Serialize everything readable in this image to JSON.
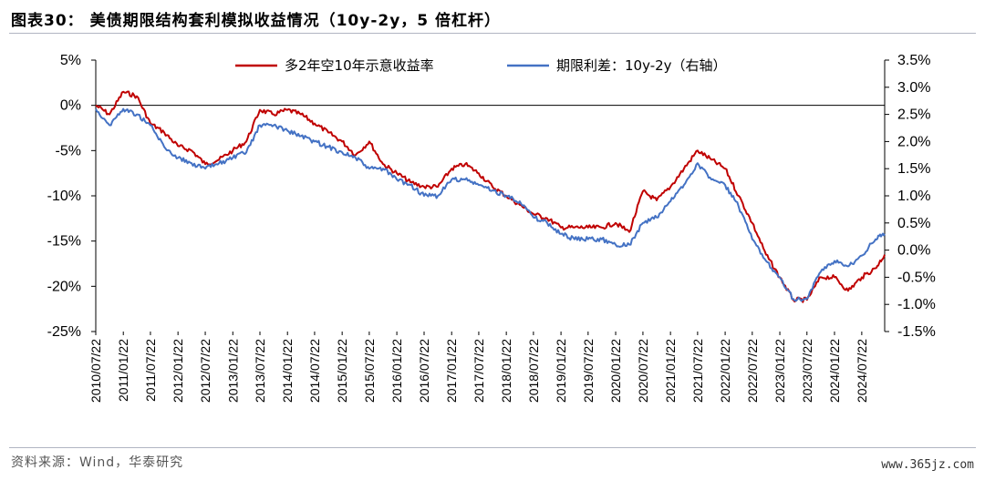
{
  "header": {
    "title": "图表30：  美债期限结构套利模拟收益情况（10y-2y，5 倍杠杆）"
  },
  "footer": {
    "source": "资料来源：Wind，华泰研究",
    "watermark": "www.365jz.com"
  },
  "chart_data": {
    "type": "line",
    "legend_placement": "top",
    "grid": false,
    "x_dates": [
      "2010-07-22",
      "2010-10-22",
      "2011-01-22",
      "2011-04-22",
      "2011-07-22",
      "2011-10-22",
      "2012-01-22",
      "2012-04-22",
      "2012-07-22",
      "2012-10-22",
      "2013-01-22",
      "2013-04-22",
      "2013-07-22",
      "2013-10-22",
      "2014-01-22",
      "2014-04-22",
      "2014-07-22",
      "2014-10-22",
      "2015-01-22",
      "2015-04-22",
      "2015-07-22",
      "2015-10-22",
      "2016-01-22",
      "2016-04-22",
      "2016-07-22",
      "2016-10-22",
      "2017-01-22",
      "2017-04-22",
      "2017-07-22",
      "2017-10-22",
      "2018-01-22",
      "2018-04-22",
      "2018-07-22",
      "2018-10-22",
      "2019-01-22",
      "2019-04-22",
      "2019-07-22",
      "2019-10-22",
      "2020-01-22",
      "2020-04-22",
      "2020-07-22",
      "2020-10-22",
      "2021-01-22",
      "2021-04-22",
      "2021-07-22",
      "2021-10-22",
      "2022-01-22",
      "2022-04-22",
      "2022-07-22",
      "2022-10-22",
      "2023-01-22",
      "2023-04-22",
      "2023-07-22",
      "2023-10-22",
      "2024-01-22",
      "2024-04-22",
      "2024-07-22",
      "2024-10-22",
      "2024-12-22"
    ],
    "x_tick_labels": [
      "2010/07/22",
      "2011/01/22",
      "2011/07/22",
      "2012/01/22",
      "2012/07/22",
      "2013/01/22",
      "2013/07/22",
      "2014/01/22",
      "2014/07/22",
      "2015/01/22",
      "2015/07/22",
      "2016/01/22",
      "2016/07/22",
      "2017/01/22",
      "2017/07/22",
      "2018/01/22",
      "2018/07/22",
      "2019/01/22",
      "2019/07/22",
      "2020/01/22",
      "2020/07/22",
      "2021/01/22",
      "2021/07/22",
      "2022/01/22",
      "2022/07/22",
      "2023/01/22",
      "2023/07/22",
      "2024/01/22",
      "2024/07/22"
    ],
    "y_left": {
      "ticks": [
        5,
        0,
        -5,
        -10,
        -15,
        -20,
        -25
      ],
      "tick_labels": [
        "5%",
        "0%",
        "-5%",
        "-10%",
        "-15%",
        "-20%",
        "-25%"
      ],
      "range": [
        -25,
        5
      ]
    },
    "y_right": {
      "ticks": [
        3.5,
        3.0,
        2.5,
        2.0,
        1.5,
        1.0,
        0.5,
        0.0,
        -0.5,
        -1.0,
        -1.5
      ],
      "tick_labels": [
        "3.5%",
        "3.0%",
        "2.5%",
        "2.0%",
        "1.5%",
        "1.0%",
        "0.5%",
        "0.0%",
        "-0.5%",
        "-1.0%",
        "-1.5%"
      ],
      "range": [
        -1.5,
        3.5
      ]
    },
    "series": [
      {
        "name": "多2年空10年示意收益率",
        "axis": "left",
        "color": "#c00000",
        "values": [
          0,
          -1,
          1.5,
          1,
          -2,
          -3,
          -4.5,
          -5,
          -6.5,
          -6,
          -5,
          -4,
          -0.5,
          -1,
          -0.5,
          -1,
          -2,
          -3,
          -4,
          -5.5,
          -4,
          -6.5,
          -7.5,
          -8.5,
          -9,
          -9,
          -7,
          -6.5,
          -7.5,
          -9,
          -10,
          -11,
          -12,
          -12.5,
          -13.5,
          -13.5,
          -13.5,
          -13.5,
          -13,
          -14,
          -9.5,
          -10.5,
          -9,
          -7,
          -5,
          -6,
          -7,
          -10,
          -13,
          -16.5,
          -19,
          -21.5,
          -21.5,
          -19,
          -19,
          -20.5,
          -19,
          -18,
          -16.5
        ]
      },
      {
        "name": "期限利差：10y-2y（右轴）",
        "axis": "right",
        "color": "#4472c4",
        "values": [
          2.6,
          2.3,
          2.6,
          2.5,
          2.3,
          1.9,
          1.7,
          1.6,
          1.5,
          1.6,
          1.7,
          1.8,
          2.3,
          2.3,
          2.2,
          2.1,
          2.0,
          1.9,
          1.8,
          1.7,
          1.5,
          1.5,
          1.3,
          1.2,
          1.0,
          1.0,
          1.3,
          1.3,
          1.2,
          1.1,
          1.0,
          0.9,
          0.6,
          0.5,
          0.3,
          0.2,
          0.2,
          0.2,
          0.1,
          0.1,
          0.5,
          0.6,
          0.9,
          1.2,
          1.6,
          1.3,
          1.2,
          0.8,
          0.2,
          -0.2,
          -0.5,
          -0.9,
          -0.9,
          -0.4,
          -0.2,
          -0.3,
          -0.1,
          0.2,
          0.3
        ]
      }
    ]
  }
}
